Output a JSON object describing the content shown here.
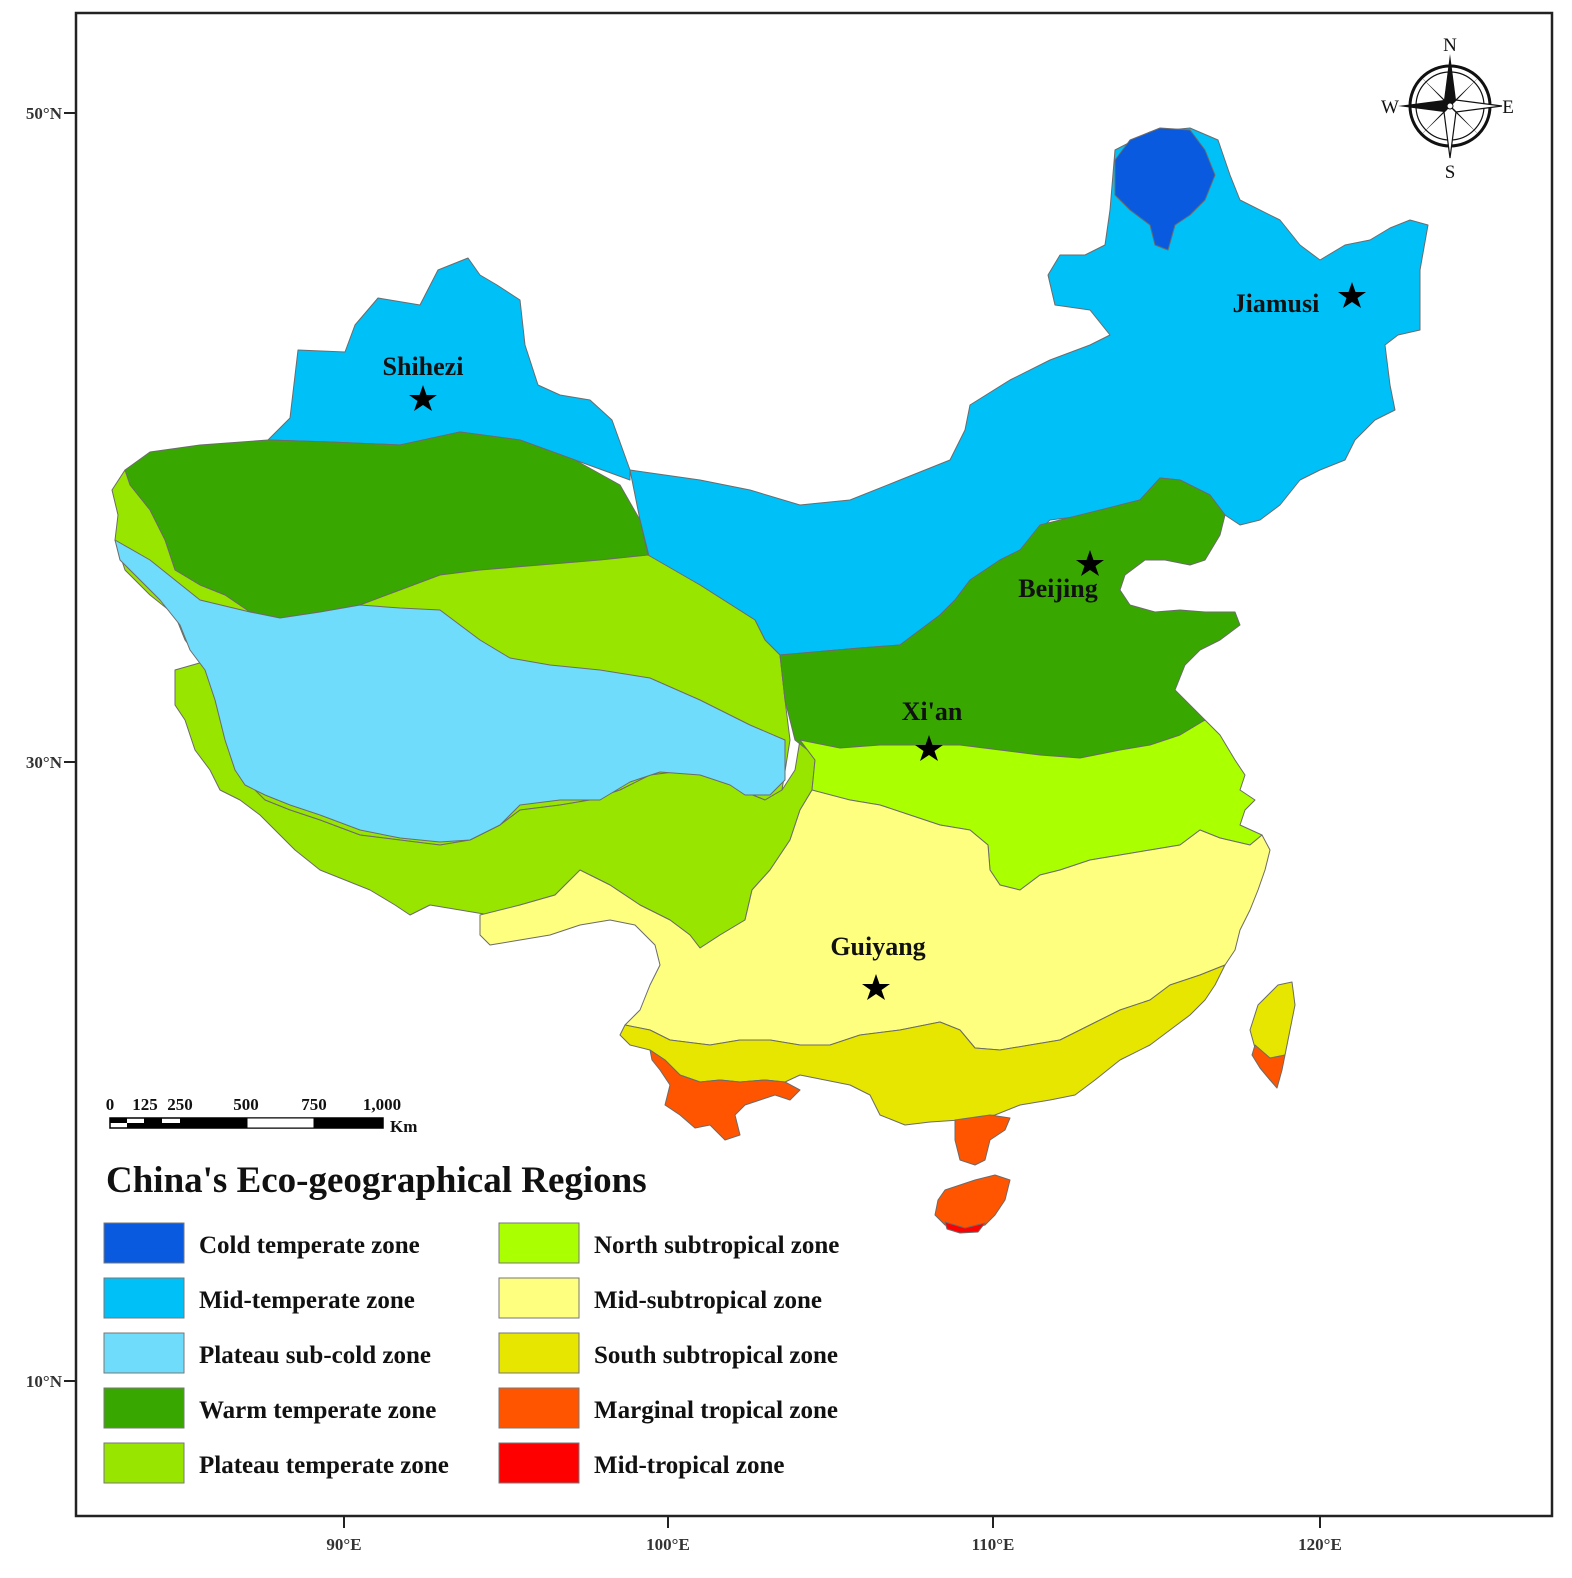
{
  "legend": {
    "title": "China's Eco-geographical Regions",
    "items": [
      {
        "label": "Cold temperate zone",
        "color": "#0a5ae0"
      },
      {
        "label": "Mid-temperate zone",
        "color": "#00c0f8"
      },
      {
        "label": "Plateau sub-cold zone",
        "color": "#6edcfa"
      },
      {
        "label": "Warm temperate zone",
        "color": "#38a800"
      },
      {
        "label": "Plateau temperate zone",
        "color": "#98e600"
      },
      {
        "label": "North subtropical zone",
        "color": "#aaff00"
      },
      {
        "label": "Mid-subtropical zone",
        "color": "#ffff7f"
      },
      {
        "label": "South subtropical zone",
        "color": "#e6e600"
      },
      {
        "label": "Marginal tropical zone",
        "color": "#ff5500"
      },
      {
        "label": "Mid-tropical zone",
        "color": "#ff0000"
      }
    ]
  },
  "axes": {
    "lat_labels": [
      "50°N",
      "30°N",
      "10°N"
    ],
    "lon_labels": [
      "90°E",
      "100°E",
      "110°E",
      "120°E"
    ]
  },
  "cities": [
    {
      "name": "Shihezi"
    },
    {
      "name": "Jiamusi"
    },
    {
      "name": "Beijing"
    },
    {
      "name": "Xi'an"
    },
    {
      "name": "Guiyang"
    }
  ],
  "scale_bar": {
    "ticks": [
      "0",
      "125",
      "250",
      "500",
      "750",
      "1,000"
    ],
    "unit": "Km"
  },
  "compass": {
    "n": "N",
    "s": "S",
    "e": "E",
    "w": "W"
  }
}
